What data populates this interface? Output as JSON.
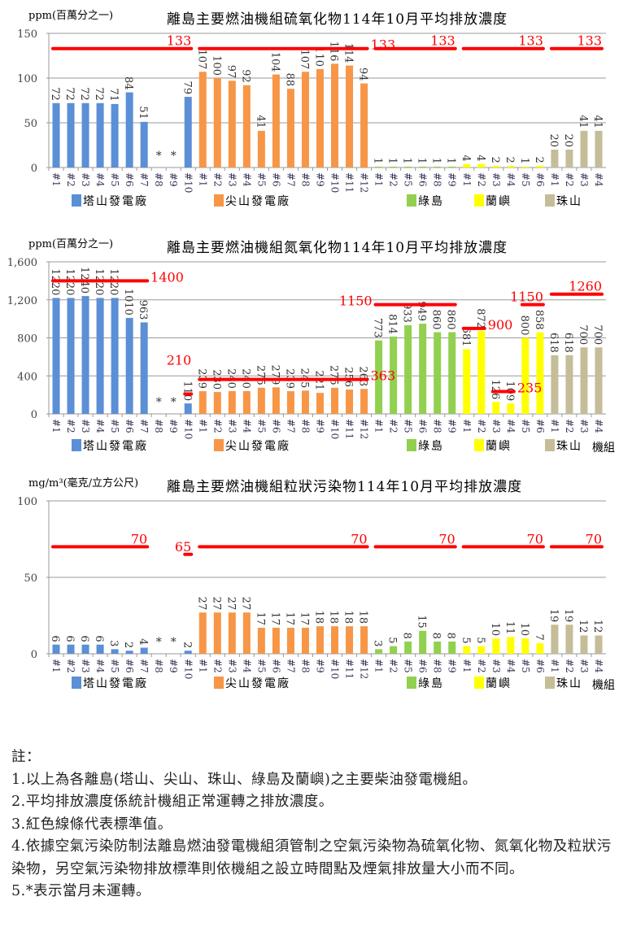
{
  "categories": [
    "#1",
    "#2",
    "#3",
    "#4",
    "#5",
    "#6",
    "#7",
    "#8",
    "#9",
    "#10",
    "#1",
    "#2",
    "#3",
    "#4",
    "#5",
    "#6",
    "#7",
    "#8",
    "#9",
    "#10",
    "#11",
    "#12",
    "#1",
    "#2",
    "#5",
    "#6",
    "#8",
    "#9",
    "#1",
    "#2",
    "#3",
    "#4",
    "#5",
    "#6",
    "#1",
    "#2",
    "#3",
    "#4"
  ],
  "groups": [
    {
      "name": "塔山發電廠",
      "color": "#5b8fd6",
      "start": 0,
      "end": 9
    },
    {
      "name": "尖山發電廠",
      "color": "#f79646",
      "start": 10,
      "end": 21
    },
    {
      "name": "綠島",
      "color": "#92d050",
      "start": 22,
      "end": 27
    },
    {
      "name": "蘭嶼",
      "color": "#ffff00",
      "start": 28,
      "end": 33
    },
    {
      "name": "珠山",
      "color": "#c4bd97",
      "start": 34,
      "end": 37
    }
  ],
  "limit_color": "#ff0000",
  "chart_data": [
    {
      "type": "bar",
      "title": "離島主要燃油機組硫氧化物114年10月平均排放濃度",
      "ylabel": "ppm(百萬分之一)",
      "xlabel": "",
      "ylim": [
        0,
        150
      ],
      "yticks": [
        "0",
        "50",
        "100",
        "150"
      ],
      "ytick_values": [
        0,
        50,
        100,
        150
      ],
      "values": [
        72,
        72,
        72,
        72,
        71,
        84,
        51,
        null,
        null,
        79,
        107,
        100,
        97,
        92,
        41,
        104,
        88,
        107,
        110,
        116,
        114,
        94,
        1,
        1,
        1,
        1,
        1,
        1,
        4,
        4,
        2,
        2,
        1,
        2,
        20,
        20,
        41,
        41
      ],
      "labels": [
        "72",
        "72",
        "72",
        "72",
        "71",
        "84",
        "51",
        "*",
        "*",
        "79",
        "107",
        "100",
        "97",
        "92",
        "41",
        "104",
        "88",
        "107",
        "110",
        "116",
        "114",
        "94",
        "1",
        "1",
        "1",
        "1",
        "1",
        "1",
        "4",
        "4",
        "2",
        "2",
        "1",
        "2",
        "20",
        "20",
        "41",
        "41"
      ],
      "limits": [
        {
          "from": 0,
          "to": 9,
          "value": 133,
          "label": "133"
        },
        {
          "from": 10,
          "to": 21,
          "value": 133,
          "label": "133"
        },
        {
          "from": 22,
          "to": 27,
          "value": 133,
          "label": "133"
        },
        {
          "from": 28,
          "to": 33,
          "value": 133,
          "label": "133"
        },
        {
          "from": 34,
          "to": 37,
          "value": 133,
          "label": "133"
        }
      ],
      "grid": true,
      "legend": "bottom",
      "legend_suffix": ""
    },
    {
      "type": "bar",
      "title": "離島主要燃油機組氮氧化物114年10月平均排放濃度",
      "ylabel": "ppm(百萬分之一)",
      "xlabel": "",
      "ylim": [
        0,
        1600
      ],
      "yticks": [
        "0",
        "400",
        "800",
        "1,200",
        "1,600"
      ],
      "ytick_values": [
        0,
        400,
        800,
        1200,
        1600
      ],
      "values": [
        1220,
        1220,
        1240,
        1220,
        1220,
        1010,
        963,
        null,
        null,
        110,
        239,
        230,
        240,
        240,
        275,
        279,
        239,
        245,
        221,
        275,
        256,
        263,
        773,
        814,
        933,
        949,
        860,
        860,
        681,
        872,
        126,
        109,
        800,
        858,
        618,
        618,
        700,
        700
      ],
      "labels": [
        "1220",
        "1220",
        "1240",
        "1220",
        "1220",
        "1010",
        "963",
        "*",
        "*",
        "110",
        "239",
        "230",
        "240",
        "240",
        "275",
        "279",
        "239",
        "245",
        "221",
        "275",
        "256",
        "263",
        "773",
        "814",
        "933",
        "949",
        "860",
        "860",
        "681",
        "872",
        "126",
        "109",
        "800",
        "858",
        "618",
        "618",
        "700",
        "700"
      ],
      "limits": [
        {
          "from": 0,
          "to": 6,
          "value": 1400,
          "label": "1400"
        },
        {
          "from": 9,
          "to": 9,
          "value": 210,
          "label": "210"
        },
        {
          "from": 10,
          "to": 21,
          "value": 363,
          "label": "363"
        },
        {
          "from": 22,
          "to": 27,
          "value": 1150,
          "label": "1150"
        },
        {
          "from": 28,
          "to": 29,
          "value": 900,
          "label": "900"
        },
        {
          "from": 30,
          "to": 31,
          "value": 235,
          "label": "235"
        },
        {
          "from": 32,
          "to": 33,
          "value": 1150,
          "label": "1150"
        },
        {
          "from": 34,
          "to": 37,
          "value": 1260,
          "label": "1260"
        }
      ],
      "grid": true,
      "legend": "bottom",
      "legend_suffix": "機組"
    },
    {
      "type": "bar",
      "title": "離島主要燃油機組粒狀污染物114年10月平均排放濃度",
      "ylabel": "mg/m³(毫克/立方公尺)",
      "xlabel": "",
      "ylim": [
        0,
        100
      ],
      "yticks": [
        "0",
        "50",
        "100"
      ],
      "ytick_values": [
        0,
        50,
        100
      ],
      "values": [
        6,
        6,
        6,
        6,
        3,
        2,
        4,
        null,
        null,
        2,
        27,
        27,
        27,
        27,
        17,
        17,
        17,
        17,
        18,
        18,
        18,
        18,
        3,
        5,
        8,
        15,
        8,
        8,
        5,
        5,
        10,
        11,
        10,
        7,
        19,
        19,
        12,
        12
      ],
      "labels": [
        "6",
        "6",
        "6",
        "6",
        "3",
        "2",
        "4",
        "*",
        "*",
        "2",
        "27",
        "27",
        "27",
        "27",
        "17",
        "17",
        "17",
        "17",
        "18",
        "18",
        "18",
        "18",
        "3",
        "5",
        "8",
        "15",
        "8",
        "8",
        "5",
        "5",
        "10",
        "11",
        "10",
        "7",
        "19",
        "19",
        "12",
        "12"
      ],
      "limits": [
        {
          "from": 0,
          "to": 6,
          "value": 70,
          "label": "70"
        },
        {
          "from": 9,
          "to": 9,
          "value": 65,
          "label": "65"
        },
        {
          "from": 10,
          "to": 21,
          "value": 70,
          "label": "70"
        },
        {
          "from": 22,
          "to": 27,
          "value": 70,
          "label": "70"
        },
        {
          "from": 28,
          "to": 33,
          "value": 70,
          "label": "70"
        },
        {
          "from": 34,
          "to": 37,
          "value": 70,
          "label": "70"
        }
      ],
      "grid": true,
      "legend": "bottom",
      "legend_suffix": "機組"
    }
  ],
  "notes": {
    "heading": "註：",
    "items": [
      "1.以上為各離島(塔山、尖山、珠山、綠島及蘭嶼)之主要柴油發電機組。",
      "2.平均排放濃度係統計機組正常運轉之排放濃度。",
      "3.紅色線條代表標準值。",
      "4.依據空氣污染防制法離島燃油發電機組須管制之空氣污染物為硫氧化物、氮氧化物及粒狀污染物，另空氣污染物排放標準則依機組之設立時間點及煙氣排放量大小而不同。",
      "5.*表示當月未運轉。"
    ]
  }
}
